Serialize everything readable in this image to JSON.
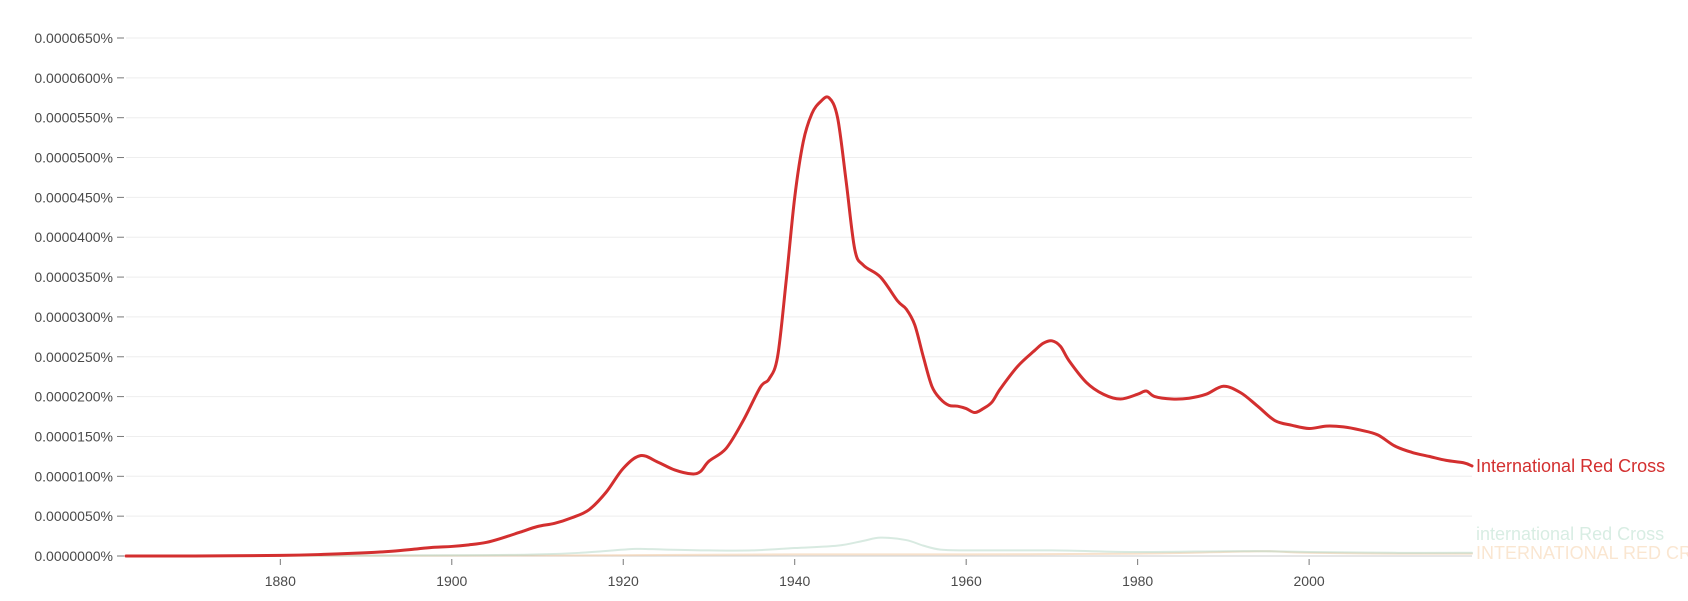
{
  "chart_data": {
    "type": "line",
    "title": "",
    "xlabel": "",
    "ylabel": "",
    "xlim": [
      1862,
      2019
    ],
    "ylim": [
      0,
      6.5e-07
    ],
    "grid": true,
    "legend": "inline-right",
    "x_ticks": [
      1880,
      1900,
      1920,
      1940,
      1960,
      1980,
      2000
    ],
    "x_tick_labels": [
      "1880",
      "1900",
      "1920",
      "1940",
      "1960",
      "1980",
      "2000"
    ],
    "y_ticks": [
      0,
      5e-08,
      1e-07,
      1.5e-07,
      2e-07,
      2.5e-07,
      3e-07,
      3.5e-07,
      4e-07,
      4.5e-07,
      5e-07,
      5.5e-07,
      6e-07,
      6.5e-07
    ],
    "y_tick_labels": [
      "0.0000000%",
      "0.0000050%",
      "0.0000100%",
      "0.0000150%",
      "0.0000200%",
      "0.0000250%",
      "0.0000300%",
      "0.0000350%",
      "0.0000400%",
      "0.0000450%",
      "0.0000500%",
      "0.0000550%",
      "0.0000600%",
      "0.0000650%"
    ],
    "series": [
      {
        "name": "International Red Cross",
        "color": "#d32f2f",
        "stroke_width": 3,
        "label_opacity": 1,
        "line_opacity": 1,
        "x": [
          1862,
          1870,
          1880,
          1885,
          1890,
          1893,
          1896,
          1898,
          1900,
          1902,
          1904,
          1906,
          1908,
          1910,
          1912,
          1914,
          1916,
          1918,
          1920,
          1922,
          1924,
          1926,
          1928,
          1929,
          1930,
          1932,
          1934,
          1936,
          1937,
          1938,
          1939,
          1940,
          1941,
          1942,
          1943,
          1944,
          1945,
          1946,
          1947,
          1948,
          1950,
          1952,
          1953,
          1954,
          1955,
          1956,
          1957,
          1958,
          1959,
          1960,
          1961,
          1962,
          1963,
          1964,
          1966,
          1968,
          1969,
          1970,
          1971,
          1972,
          1974,
          1976,
          1978,
          1980,
          1981,
          1982,
          1984,
          1986,
          1988,
          1990,
          1992,
          1994,
          1996,
          1998,
          2000,
          2002,
          2004,
          2006,
          2008,
          2010,
          2012,
          2014,
          2016,
          2018,
          2019
        ],
        "y": [
          0,
          0,
          8e-10,
          2e-09,
          4e-09,
          6e-09,
          9e-09,
          1.1e-08,
          1.2e-08,
          1.4e-08,
          1.7e-08,
          2.3e-08,
          3e-08,
          3.7e-08,
          4.1e-08,
          4.8e-08,
          5.8e-08,
          8e-08,
          1.1e-07,
          1.26e-07,
          1.18e-07,
          1.08e-07,
          1.03e-07,
          1.06e-07,
          1.19e-07,
          1.35e-07,
          1.7e-07,
          2.12e-07,
          2.22e-07,
          2.5e-07,
          3.45e-07,
          4.5e-07,
          5.2e-07,
          5.55e-07,
          5.7e-07,
          5.75e-07,
          5.5e-07,
          4.7e-07,
          3.85e-07,
          3.65e-07,
          3.5e-07,
          3.2e-07,
          3.1e-07,
          2.9e-07,
          2.5e-07,
          2.13e-07,
          1.97e-07,
          1.89e-07,
          1.88e-07,
          1.85e-07,
          1.8e-07,
          1.85e-07,
          1.93e-07,
          2.1e-07,
          2.38e-07,
          2.58e-07,
          2.67e-07,
          2.7e-07,
          2.63e-07,
          2.45e-07,
          2.18e-07,
          2.03e-07,
          1.97e-07,
          2.03e-07,
          2.07e-07,
          2e-07,
          1.97e-07,
          1.98e-07,
          2.03e-07,
          2.13e-07,
          2.05e-07,
          1.88e-07,
          1.7e-07,
          1.64e-07,
          1.6e-07,
          1.63e-07,
          1.62e-07,
          1.58e-07,
          1.52e-07,
          1.38e-07,
          1.3e-07,
          1.25e-07,
          1.2e-07,
          1.17e-07,
          1.13e-07
        ]
      },
      {
        "name": "international Red Cross",
        "color": "#b8d8c8",
        "stroke_width": 2,
        "label_opacity": 0.45,
        "line_opacity": 0.55,
        "x": [
          1862,
          1900,
          1910,
          1915,
          1920,
          1922,
          1925,
          1930,
          1935,
          1940,
          1945,
          1948,
          1950,
          1953,
          1955,
          1957,
          1960,
          1970,
          1980,
          1990,
          1995,
          2000,
          2010,
          2019
        ],
        "y": [
          0,
          1e-09,
          2e-09,
          4e-09,
          8e-09,
          9e-09,
          8e-09,
          7e-09,
          7e-09,
          1e-08,
          1.3e-08,
          1.9e-08,
          2.3e-08,
          2e-08,
          1.3e-08,
          8e-09,
          7e-09,
          7e-09,
          5e-09,
          6e-09,
          6e-09,
          5e-09,
          4e-09,
          4e-09
        ]
      },
      {
        "name": "INTERNATIONAL RED CROSS",
        "color": "#f0c8a0",
        "stroke_width": 2,
        "label_opacity": 0.45,
        "line_opacity": 0.55,
        "x": [
          1862,
          1900,
          1920,
          1940,
          1960,
          1980,
          1990,
          1995,
          2000,
          2010,
          2019
        ],
        "y": [
          0,
          5e-10,
          1e-09,
          2e-09,
          2e-09,
          3e-09,
          5e-09,
          6e-09,
          4e-09,
          3e-09,
          3e-09
        ]
      }
    ]
  }
}
